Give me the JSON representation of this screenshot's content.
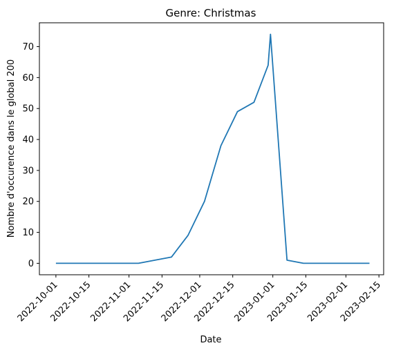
{
  "chart_data": {
    "type": "line",
    "title": "Genre:  Christmas",
    "xlabel": "Date",
    "ylabel": "Nombre d'occurence dans le global 200",
    "x_scale": "date",
    "xlim": [
      "2022-09-24",
      "2023-02-17"
    ],
    "ylim": [
      -3.7,
      77.7
    ],
    "x_ticks": [
      "2022-10-01",
      "2022-10-15",
      "2022-11-01",
      "2022-11-15",
      "2022-12-01",
      "2022-12-15",
      "2023-01-01",
      "2023-01-15",
      "2023-02-01",
      "2023-02-15"
    ],
    "y_ticks": [
      0,
      10,
      20,
      30,
      40,
      50,
      60,
      70
    ],
    "grid": false,
    "line_color": "#1f77b4",
    "series": [
      {
        "x": [
          "2022-10-01",
          "2022-10-08",
          "2022-10-15",
          "2022-10-22",
          "2022-10-29",
          "2022-11-05",
          "2022-11-12",
          "2022-11-19",
          "2022-11-26",
          "2022-12-03",
          "2022-12-10",
          "2022-12-17",
          "2022-12-24",
          "2022-12-30",
          "2022-12-31",
          "2023-01-07",
          "2023-01-14",
          "2023-01-21",
          "2023-01-28",
          "2023-02-04",
          "2023-02-11"
        ],
        "y": [
          0,
          0,
          0,
          0,
          0,
          0,
          1,
          2,
          9,
          20,
          38,
          49,
          52,
          64,
          74,
          1,
          0,
          0,
          0,
          0,
          0
        ]
      }
    ]
  }
}
